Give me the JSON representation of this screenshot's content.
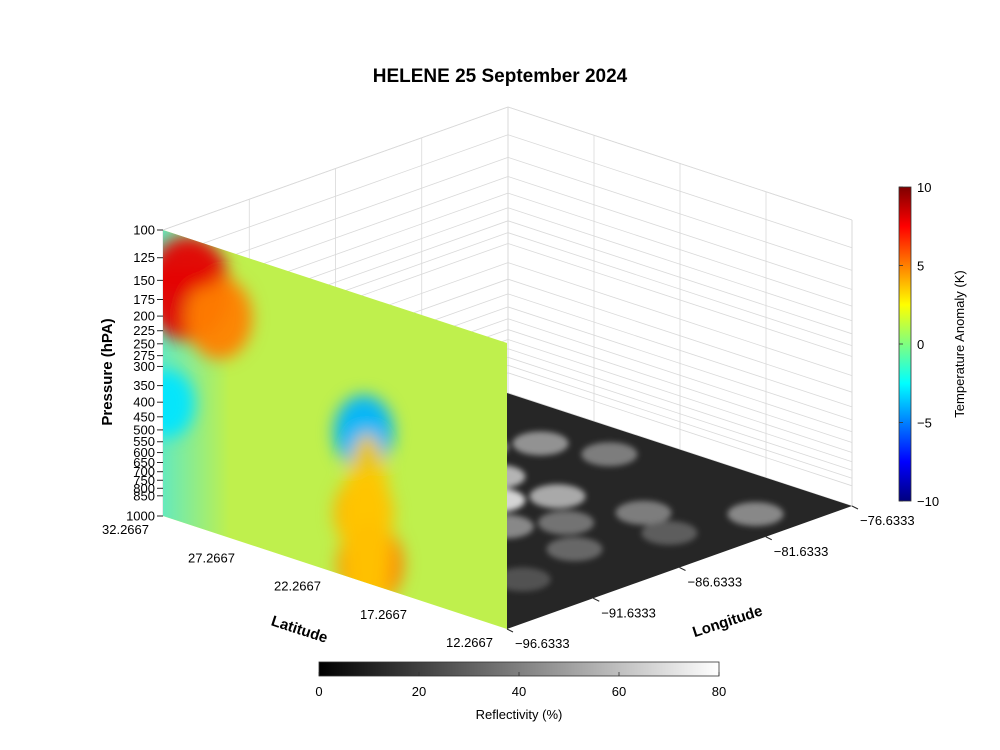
{
  "chart_data": {
    "type": "heatmap",
    "title": "HELENE 25 September 2024",
    "vertical_section": {
      "zlabel": "Pressure (hPA)",
      "z_ticks": [
        "100",
        "125",
        "150",
        "175",
        "200",
        "225",
        "250",
        "275",
        "300",
        "350",
        "400",
        "450",
        "500",
        "550",
        "600",
        "650",
        "700",
        "750",
        "800",
        "850",
        "1000"
      ],
      "xlabel": "Latitude",
      "x_ticks": [
        "32.2667",
        "27.2667",
        "22.2667",
        "17.2667",
        "12.2667"
      ],
      "colormap": "jet",
      "anomaly_features": [
        {
          "latitude": 30.8,
          "pressure": 150,
          "value": 8
        },
        {
          "latitude": 29.0,
          "pressure": 175,
          "value": 5
        },
        {
          "latitude": 20.6,
          "pressure": 300,
          "value": -4
        },
        {
          "latitude": 32.0,
          "pressure": 400,
          "value": -3
        },
        {
          "latitude": 20.6,
          "pressure": 575,
          "value": 4
        },
        {
          "latitude": 20.2,
          "pressure": 850,
          "value": 5
        }
      ]
    },
    "horizontal_plane": {
      "ylabel": "Longitude",
      "y_ticks": [
        "−96.6333",
        "−91.6333",
        "−86.6333",
        "−81.6333",
        "−76.6333"
      ],
      "colormap": "gray"
    },
    "colorbars": [
      {
        "label": "Temperature Anomaly (K)",
        "ticks": [
          "10",
          "5",
          "0",
          "−5",
          "−10"
        ],
        "range": [
          -10,
          10
        ],
        "colormap": "jet"
      },
      {
        "label": "Reflectivity (%)",
        "ticks": [
          "0",
          "20",
          "40",
          "60",
          "80"
        ],
        "range": [
          0,
          80
        ],
        "colormap": "gray"
      }
    ]
  }
}
